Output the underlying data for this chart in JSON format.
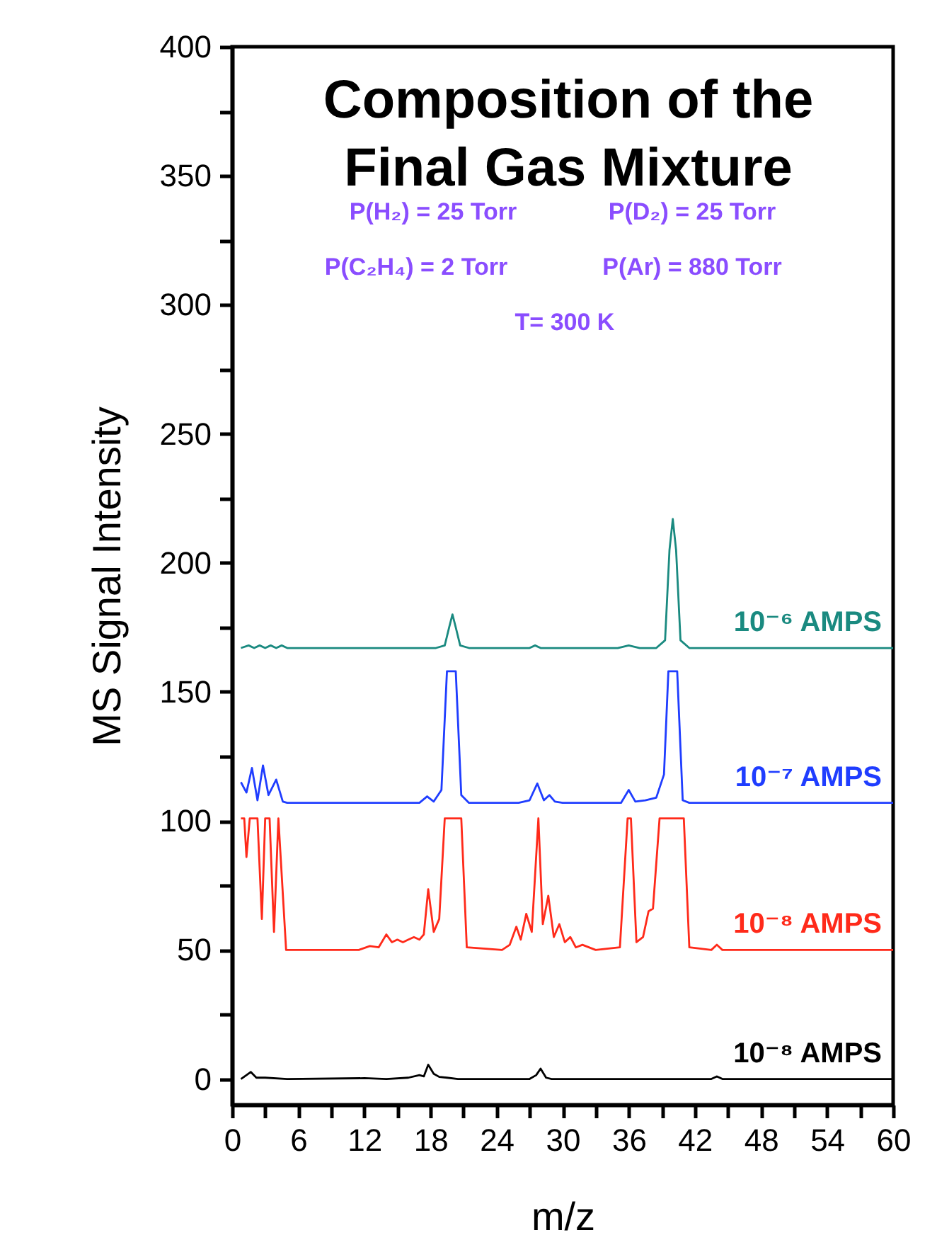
{
  "chart_data": {
    "type": "line",
    "title": "Composition of the\nFinal Gas Mixture",
    "xlabel": "m/z",
    "ylabel": "MS Signal Intensity",
    "annotations": [
      "P(H₂) =  25 Torr",
      "P(D₂) =  25 Torr",
      "P(C₂H₄) =  2 Torr",
      "P(Ar) =  880 Torr",
      "T= 300 K"
    ],
    "xlim": [
      0,
      60
    ],
    "xticks": [
      0,
      {
        "value": 3,
        "label": null
      },
      6,
      {
        "value": 9,
        "label": null
      },
      12,
      {
        "value": 15,
        "label": null
      },
      18,
      {
        "value": 21,
        "label": null
      },
      24,
      {
        "value": 27,
        "label": null
      },
      30,
      {
        "value": 33,
        "label": null
      },
      36,
      {
        "value": 39,
        "label": null
      },
      42,
      {
        "value": 45,
        "label": null
      },
      48,
      {
        "value": 51,
        "label": null
      },
      54,
      {
        "value": 57,
        "label": null
      },
      60
    ],
    "ylim": [
      -10,
      400
    ],
    "yticks": [
      0,
      {
        "value": 25,
        "label": null
      },
      50,
      {
        "value": 75,
        "label": null
      },
      100,
      {
        "value": 125,
        "label": null
      },
      150,
      {
        "value": 175,
        "label": null
      },
      200,
      {
        "value": 225,
        "label": null
      },
      250,
      {
        "value": 275,
        "label": null
      },
      300,
      {
        "value": 325,
        "label": null
      },
      350,
      {
        "value": 375,
        "label": null
      },
      400
    ],
    "grid": false,
    "line_style": "solid",
    "series": [
      {
        "name": "10⁻⁶ AMPS",
        "color": "#1a8a80",
        "x": [
          0.8,
          1.5,
          2,
          2.5,
          3,
          3.5,
          4,
          4.5,
          5,
          18.5,
          19.3,
          19.7,
          20,
          20.3,
          20.7,
          21.5,
          27,
          27.5,
          28,
          28.5,
          35,
          36,
          37,
          38.5,
          39.3,
          39.7,
          40,
          40.3,
          40.7,
          41.5,
          60
        ],
        "values": [
          167,
          168,
          167,
          168,
          167,
          168,
          167,
          168,
          167,
          167,
          168,
          175,
          180,
          175,
          168,
          167,
          167,
          168,
          167,
          167,
          167,
          168,
          167,
          167,
          170,
          205,
          217,
          205,
          170,
          167,
          167
        ]
      },
      {
        "name": "10⁻⁷ AMPS",
        "color": "#1f3dff",
        "x": [
          0.8,
          1.3,
          1.8,
          2.3,
          2.8,
          3.3,
          4.0,
          4.6,
          5,
          17,
          17.7,
          18.3,
          19.0,
          19.5,
          20.3,
          20.8,
          21.5,
          26,
          27,
          27.7,
          28.3,
          28.8,
          29.3,
          30,
          35.3,
          36,
          36.6,
          37.5,
          38.5,
          39.2,
          39.6,
          40.4,
          40.9,
          41.5,
          60
        ],
        "values": [
          115,
          111,
          120.5,
          108,
          121.5,
          110,
          116,
          107.5,
          107,
          107,
          109.5,
          107.5,
          112,
          158,
          158,
          110,
          107,
          107,
          108,
          114.5,
          108,
          110,
          107.5,
          107,
          107,
          112,
          107.5,
          108,
          109,
          118,
          158,
          158,
          108,
          107,
          107
        ]
      },
      {
        "name": "10⁻⁸ AMPS",
        "color": "#ff2a1a",
        "x": [
          0.8,
          1.1,
          1.3,
          1.6,
          2.3,
          2.7,
          3.0,
          3.4,
          3.8,
          4.2,
          4.9,
          11.5,
          12.5,
          13.3,
          14,
          14.5,
          15,
          15.5,
          16,
          16.5,
          17,
          17.4,
          17.8,
          18.3,
          18.8,
          19.3,
          20.8,
          21.3,
          24.5,
          25.2,
          25.8,
          26.2,
          26.7,
          27.2,
          27.8,
          28.2,
          28.7,
          29.2,
          29.7,
          30.2,
          30.7,
          31.2,
          31.8,
          33,
          35.2,
          35.9,
          36.2,
          36.7,
          37.3,
          37.8,
          38.2,
          38.8,
          41.0,
          41.5,
          43.5,
          44,
          44.5,
          60
        ],
        "values": [
          101,
          101,
          86,
          101,
          101,
          62,
          101,
          101,
          57,
          101,
          50,
          50,
          51.5,
          51,
          56,
          53,
          54,
          53,
          54,
          55,
          54,
          56,
          73.5,
          57,
          62,
          101,
          101,
          51,
          50,
          52,
          59,
          54,
          64,
          57,
          101,
          60,
          71,
          55,
          60,
          53,
          55,
          51,
          52,
          50,
          51,
          101,
          101,
          53,
          55,
          65,
          66,
          101,
          101,
          51,
          50,
          52,
          50,
          50
        ]
      },
      {
        "name": "10⁻⁸ AMPS",
        "color": "#000000",
        "x": [
          0.8,
          1.3,
          1.7,
          2.2,
          3,
          5,
          12,
          14,
          16,
          17,
          17.4,
          17.8,
          18.3,
          18.8,
          19.5,
          20.5,
          27,
          27.6,
          28,
          28.5,
          29,
          43.5,
          44,
          44.5,
          60
        ],
        "values": [
          0,
          1.5,
          2.7,
          0.5,
          0.5,
          0,
          0.3,
          0,
          0.5,
          1.5,
          1,
          5.5,
          2,
          0.8,
          0.5,
          0,
          0,
          1.5,
          4,
          0.5,
          0,
          0,
          1,
          0,
          0
        ]
      }
    ]
  }
}
